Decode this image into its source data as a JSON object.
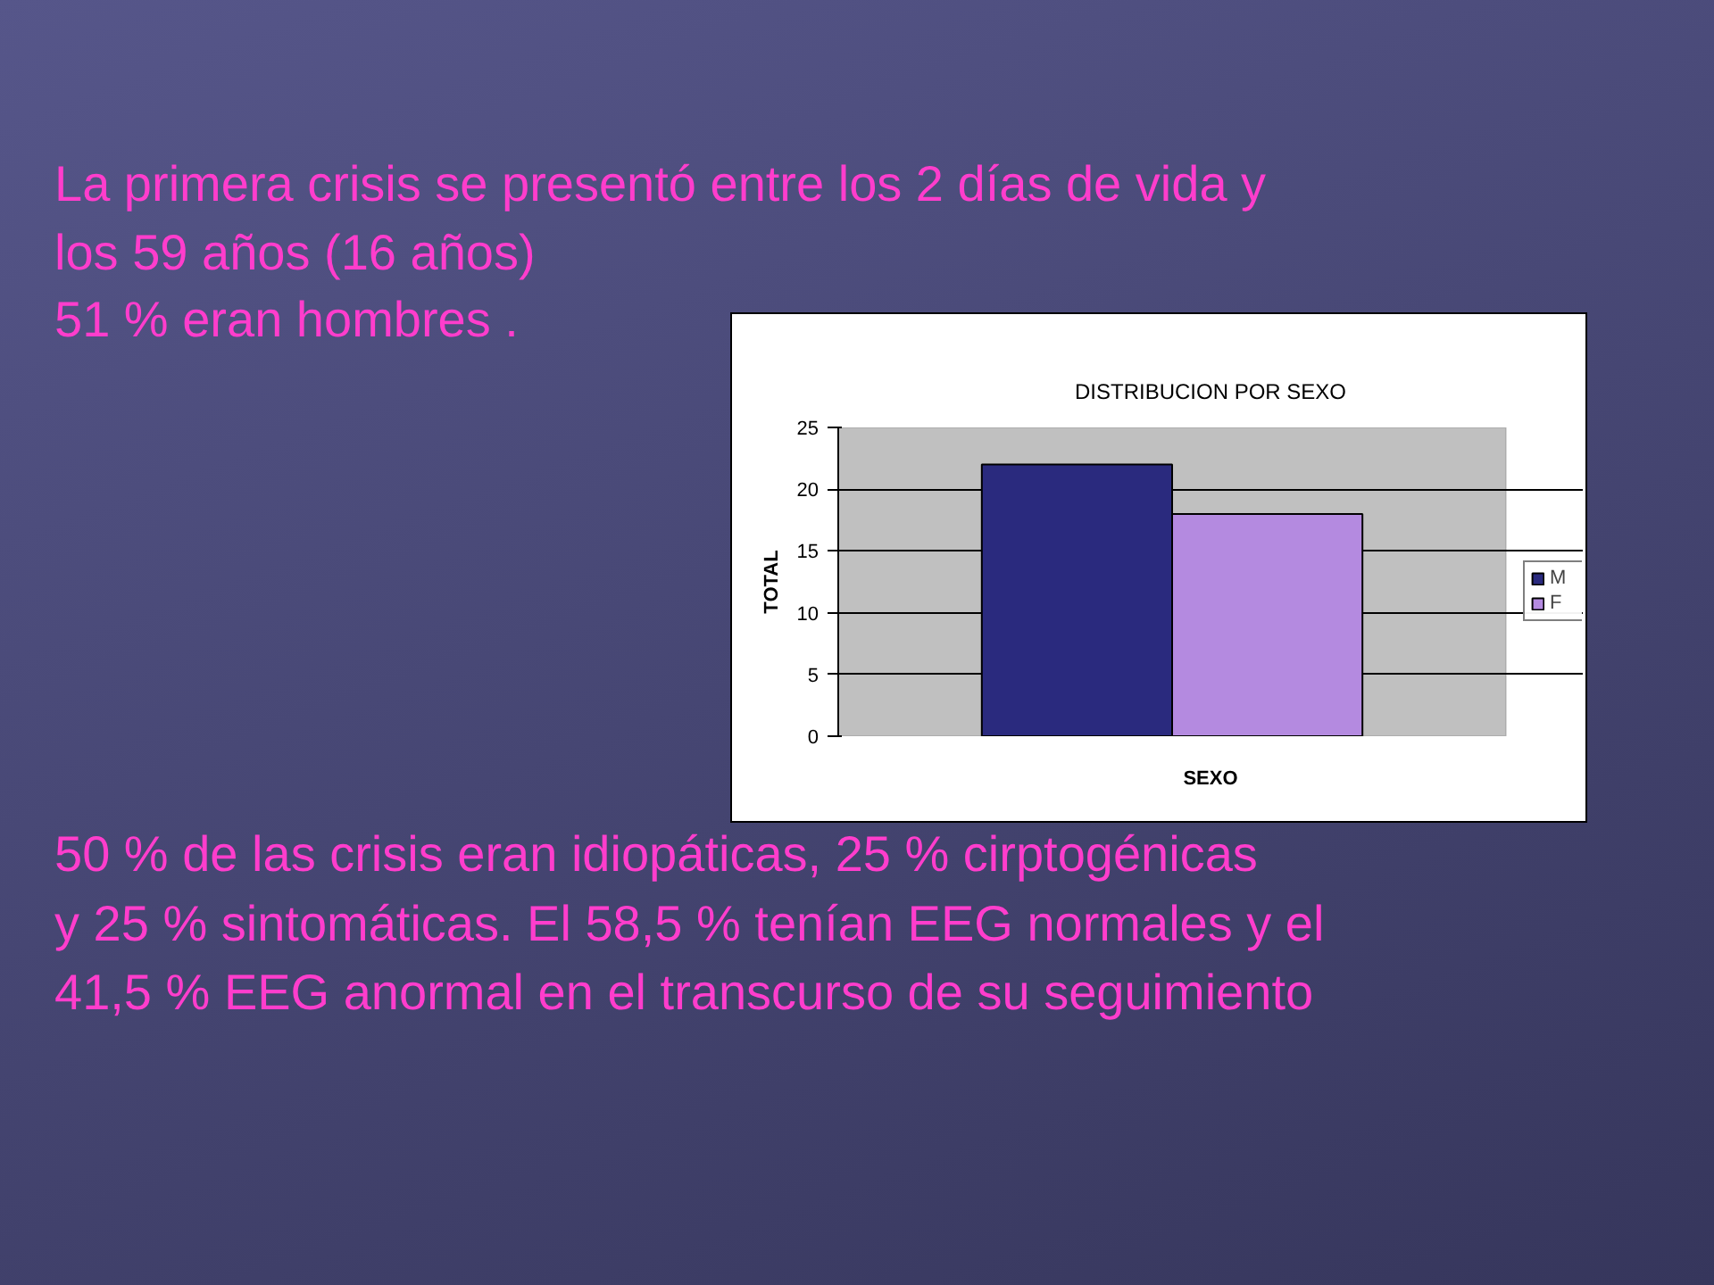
{
  "chart_data": {
    "type": "bar",
    "title": "DISTRIBUCION POR SEXO",
    "xlabel": "SEXO",
    "ylabel": "TOTAL",
    "categories": [
      null
    ],
    "series": [
      {
        "name": "M",
        "color": "#2a2a7e",
        "values": [
          22
        ]
      },
      {
        "name": "F",
        "color": "#b48ae0",
        "values": [
          18
        ]
      }
    ],
    "ylim": [
      0,
      25
    ],
    "yticks": [
      0,
      5,
      10,
      15,
      20,
      25
    ],
    "grid": "y",
    "legend": "right",
    "annotations": [
      "La primera crisis se presentó entre los 2 días de vida y los 59 años (16 años)",
      "51 % eran hombres .",
      "50 % de las crisis eran idiopáticas, 25 % cirptogénicas y 25 % sintomáticas. El 58,5 % tenían EEG normales y el 41,5 % EEG anormal en el transcurso de su seguimiento"
    ]
  }
}
